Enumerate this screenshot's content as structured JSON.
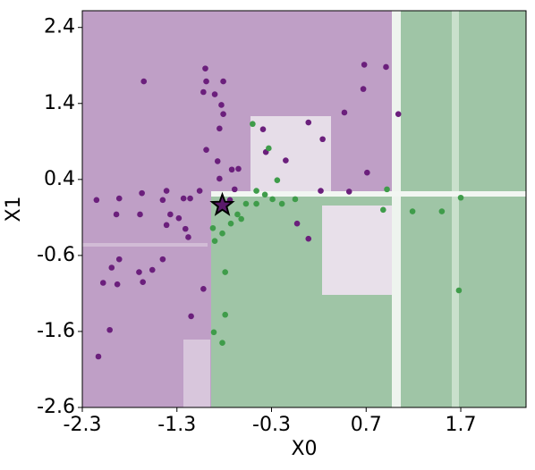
{
  "chart_data": {
    "type": "scatter",
    "x_label": "X0",
    "y_label": "X1",
    "xlim": [
      -2.3,
      2.39
    ],
    "ylim": [
      -2.6,
      2.62
    ],
    "xticks": [
      -2.3,
      -1.3,
      -0.3,
      0.7,
      1.7
    ],
    "yticks": [
      -2.6,
      -1.6,
      -0.6,
      0.4,
      1.4,
      2.4
    ],
    "series": [
      {
        "color": "#6b1f7c",
        "x": [
          -1.65,
          -1.0,
          -0.99,
          -1.02,
          -0.81,
          -0.9,
          -0.83,
          -0.81,
          -0.85,
          -0.99,
          -0.87,
          -0.72,
          -0.65,
          -0.85,
          -0.69,
          -0.74,
          -1.06,
          -1.16,
          -1.23,
          -1.41,
          -1.45,
          -1.67,
          -1.69,
          -1.91,
          -2.15,
          -1.94,
          -1.37,
          -1.28,
          -1.21,
          -1.18,
          -1.41,
          -1.91,
          -1.99,
          -1.7,
          -1.56,
          -1.45,
          -2.08,
          -1.93,
          -1.66,
          -1.15,
          -2.01,
          -2.13,
          -1.02,
          0.09,
          0.24,
          0.47,
          0.68,
          0.67,
          0.91,
          1.04,
          0.22,
          0.52,
          0.71,
          -0.15,
          -0.36,
          -0.39,
          -0.03,
          0.09
        ],
        "values": [
          1.69,
          1.86,
          1.69,
          1.55,
          1.69,
          1.52,
          1.38,
          1.26,
          1.07,
          0.79,
          0.64,
          0.53,
          0.54,
          0.41,
          0.27,
          0.13,
          0.25,
          0.15,
          0.15,
          0.25,
          0.13,
          0.22,
          -0.06,
          0.15,
          0.13,
          -0.06,
          -0.06,
          -0.11,
          -0.25,
          -0.36,
          -0.2,
          -0.65,
          -0.76,
          -0.82,
          -0.79,
          -0.65,
          -0.96,
          -0.98,
          -0.95,
          -1.4,
          -1.58,
          -1.93,
          -1.04,
          1.15,
          0.93,
          1.28,
          1.91,
          1.59,
          1.88,
          1.26,
          0.25,
          0.24,
          0.49,
          0.65,
          0.76,
          1.06,
          -0.18,
          -0.38
        ]
      },
      {
        "color": "#3f9c4a",
        "x": [
          -0.92,
          -0.82,
          -0.9,
          -0.79,
          -0.79,
          -0.91,
          -0.82,
          -0.46,
          -0.37,
          -0.57,
          -0.46,
          -0.29,
          -0.66,
          -0.73,
          -0.62,
          1.7,
          1.5,
          1.68,
          -0.5,
          -0.33,
          -0.24,
          0.92,
          0.88,
          1.19,
          -0.05,
          -0.19
        ],
        "values": [
          -0.24,
          -0.31,
          -0.41,
          -0.82,
          -1.38,
          -1.61,
          -1.75,
          0.25,
          0.2,
          0.08,
          0.08,
          0.14,
          -0.06,
          -0.18,
          -0.12,
          0.16,
          -0.02,
          -1.06,
          1.13,
          0.81,
          0.39,
          0.27,
          0.0,
          -0.02,
          0.14,
          0.08
        ]
      }
    ],
    "star": {
      "x": -0.82,
      "y": 0.06,
      "color": "#5a1a6a"
    }
  }
}
